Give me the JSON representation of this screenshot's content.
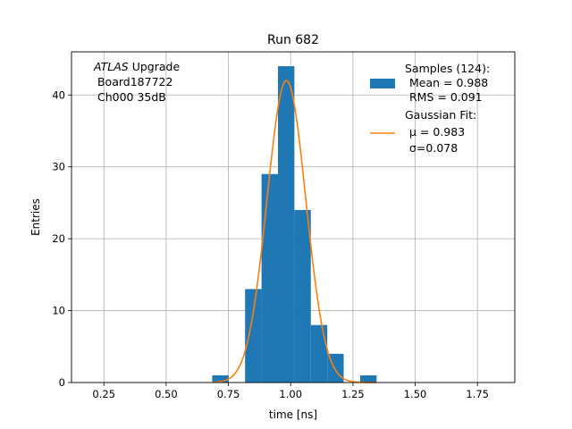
{
  "chart_data": {
    "type": "bar",
    "title": "Run 682",
    "xlabel": "time [ns]",
    "ylabel": "Entries",
    "xlim": [
      0.12,
      1.9
    ],
    "ylim": [
      0,
      46
    ],
    "xticks": [
      0.25,
      0.5,
      0.75,
      1.0,
      1.25,
      1.5,
      1.75
    ],
    "xtick_labels": [
      "0.25",
      "0.50",
      "0.75",
      "1.00",
      "1.25",
      "1.50",
      "1.75"
    ],
    "yticks": [
      0,
      10,
      20,
      30,
      40
    ],
    "ytick_labels": [
      "0",
      "10",
      "20",
      "30",
      "40"
    ],
    "grid": true,
    "legend_position": "top-right",
    "annotation_lines": [
      "ATLAS Upgrade",
      " Board187722",
      " Ch000 35dB"
    ],
    "annotation_italic_word": "ATLAS",
    "histogram": {
      "name": "Samples (124):",
      "color": "#1f77b4",
      "bin_edges": [
        0.685,
        0.751,
        0.817,
        0.883,
        0.949,
        1.015,
        1.081,
        1.147,
        1.213,
        1.279,
        1.345,
        1.411
      ],
      "counts": [
        1,
        0,
        13,
        29,
        44,
        24,
        8,
        4,
        0,
        1,
        0
      ],
      "stats": [
        "Mean = 0.988",
        "RMS = 0.091"
      ]
    },
    "fit": {
      "name": "Gaussian Fit:",
      "color": "#ff7f0e",
      "mu": 0.983,
      "sigma": 0.078,
      "amplitude": 42,
      "x_range": [
        0.685,
        1.345
      ],
      "params": [
        "μ = 0.983",
        "σ=0.078"
      ]
    }
  }
}
